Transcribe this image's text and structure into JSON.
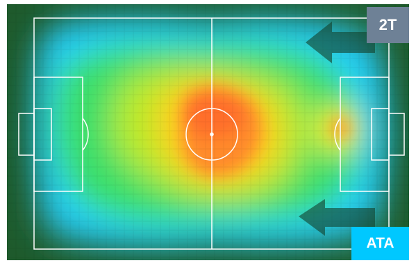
{
  "badges": {
    "half": {
      "label": "2T",
      "color": "#6e8196"
    },
    "position": {
      "label": "ATA",
      "color": "#00c8ff"
    }
  },
  "colors": {
    "grass": "#1e5a2c",
    "lines": "#ffffff",
    "heat_scale": [
      "#1f6a36",
      "#2fb0a0",
      "#29a8ff",
      "#22e0ff",
      "#33e060",
      "#a8e82a",
      "#f0f020",
      "#ffb020",
      "#ff6a2a"
    ]
  },
  "icons": {
    "attack_direction": "arrow-right-icon"
  }
}
